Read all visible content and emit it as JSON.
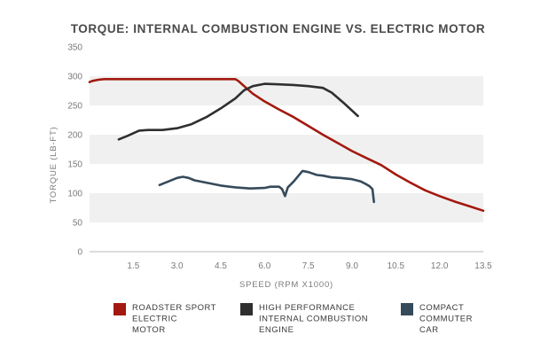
{
  "chart_data": {
    "type": "line",
    "title": "TORQUE: INTERNAL COMBUSTION ENGINE VS. ELECTRIC MOTOR",
    "xlabel": "SPEED (RPM X1000)",
    "ylabel": "TORQUE (LB-FT)",
    "xlim": [
      0,
      13.5
    ],
    "ylim": [
      0,
      350
    ],
    "x_ticks": [
      "1.5",
      "3.0",
      "4.5",
      "6.0",
      "7.5",
      "9.0",
      "10.5",
      "12.0",
      "13.5"
    ],
    "y_ticks": [
      "0",
      "50",
      "100",
      "150",
      "200",
      "250",
      "300",
      "350"
    ],
    "grid": "alternating horizontal bands",
    "legend_position": "bottom",
    "series": [
      {
        "name": "ROADSTER SPORT ELECTRIC MOTOR",
        "legend_lines": [
          "ROADSTER SPORT",
          "ELECTRIC",
          "MOTOR"
        ],
        "color": "#a3190f",
        "points": [
          [
            0.0,
            290
          ],
          [
            0.1,
            292
          ],
          [
            0.3,
            294
          ],
          [
            0.5,
            295
          ],
          [
            1.0,
            295
          ],
          [
            2.0,
            295
          ],
          [
            3.0,
            295
          ],
          [
            4.0,
            295
          ],
          [
            5.0,
            295
          ],
          [
            5.1,
            292
          ],
          [
            5.3,
            283
          ],
          [
            5.6,
            270
          ],
          [
            6.0,
            257
          ],
          [
            6.5,
            243
          ],
          [
            7.0,
            230
          ],
          [
            7.5,
            215
          ],
          [
            8.0,
            200
          ],
          [
            8.5,
            186
          ],
          [
            9.0,
            172
          ],
          [
            9.5,
            160
          ],
          [
            10.0,
            148
          ],
          [
            10.5,
            132
          ],
          [
            11.0,
            118
          ],
          [
            11.5,
            105
          ],
          [
            12.0,
            95
          ],
          [
            12.5,
            86
          ],
          [
            13.0,
            78
          ],
          [
            13.5,
            70
          ]
        ]
      },
      {
        "name": "HIGH PERFORMANCE INTERNAL COMBUSTION ENGINE",
        "legend_lines": [
          "HIGH PERFORMANCE",
          "INTERNAL COMBUSTION",
          "ENGINE"
        ],
        "color": "#2f2f2f",
        "points": [
          [
            1.0,
            192
          ],
          [
            1.3,
            198
          ],
          [
            1.7,
            207
          ],
          [
            2.0,
            208
          ],
          [
            2.5,
            208
          ],
          [
            3.0,
            211
          ],
          [
            3.5,
            218
          ],
          [
            4.0,
            230
          ],
          [
            4.5,
            245
          ],
          [
            5.0,
            262
          ],
          [
            5.3,
            276
          ],
          [
            5.6,
            283
          ],
          [
            6.0,
            287
          ],
          [
            6.5,
            286
          ],
          [
            7.0,
            285
          ],
          [
            7.5,
            283
          ],
          [
            8.0,
            280
          ],
          [
            8.3,
            272
          ],
          [
            8.7,
            255
          ],
          [
            9.2,
            232
          ]
        ]
      },
      {
        "name": "COMPACT COMMUTER CAR",
        "legend_lines": [
          "COMPACT",
          "COMMUTER",
          "CAR"
        ],
        "color": "#364a5a",
        "points": [
          [
            2.4,
            114
          ],
          [
            2.7,
            120
          ],
          [
            3.0,
            126
          ],
          [
            3.2,
            128
          ],
          [
            3.4,
            126
          ],
          [
            3.6,
            122
          ],
          [
            4.0,
            118
          ],
          [
            4.5,
            113
          ],
          [
            5.0,
            110
          ],
          [
            5.5,
            108
          ],
          [
            6.0,
            109
          ],
          [
            6.2,
            111
          ],
          [
            6.5,
            111
          ],
          [
            6.6,
            107
          ],
          [
            6.7,
            95
          ],
          [
            6.8,
            110
          ],
          [
            7.0,
            120
          ],
          [
            7.3,
            138
          ],
          [
            7.5,
            136
          ],
          [
            7.8,
            131
          ],
          [
            8.0,
            130
          ],
          [
            8.3,
            127
          ],
          [
            8.6,
            126
          ],
          [
            9.0,
            124
          ],
          [
            9.3,
            120
          ],
          [
            9.5,
            115
          ],
          [
            9.6,
            112
          ],
          [
            9.7,
            107
          ],
          [
            9.75,
            85
          ]
        ]
      }
    ]
  }
}
